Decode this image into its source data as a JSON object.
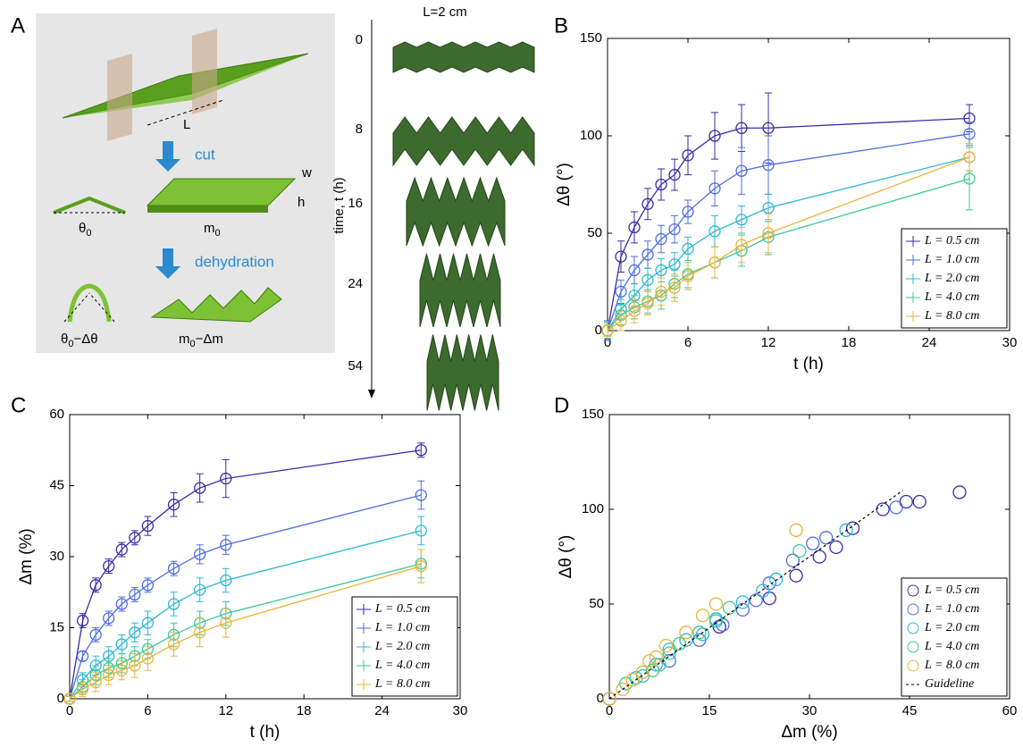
{
  "panel_a": {
    "label": "A",
    "diagram": {
      "length": "L",
      "cut": "cut",
      "width": "w",
      "height": "h",
      "angle_initial": {
        "base": "θ",
        "sub": "0",
        "rest": ""
      },
      "mass_initial": {
        "base": "m",
        "sub": "0",
        "rest": ""
      },
      "dehydration": "dehydration",
      "angle_final": {
        "base": "θ",
        "sub": "0",
        "rest": "−Δθ"
      },
      "mass_final": {
        "base": "m",
        "sub": "0",
        "rest": "−Δm"
      }
    },
    "time_strip": {
      "title": "L=2 cm",
      "axis_label": "time, t (h)",
      "ticks": [
        0,
        8,
        16,
        24,
        54
      ]
    }
  },
  "chart_data": [
    {
      "type": "line",
      "label": "B",
      "xlabel": "t (h)",
      "ylabel": "Δθ (°)",
      "x": [
        0,
        1,
        2,
        3,
        4,
        5,
        6,
        8,
        10,
        12,
        27
      ],
      "xlim": [
        0,
        30
      ],
      "xticks": [
        0,
        6,
        12,
        18,
        24,
        30
      ],
      "ylim": [
        0,
        150
      ],
      "yticks": [
        0,
        50,
        100,
        150
      ],
      "legend": "lower right",
      "series": [
        {
          "name": "L = 0.5 cm",
          "color": "#3b2aa6",
          "values": [
            0,
            38,
            53,
            65,
            75,
            80,
            90,
            100,
            104,
            104,
            109
          ],
          "errors": [
            5,
            8,
            8,
            8,
            8,
            8,
            10,
            12,
            12,
            18,
            7
          ]
        },
        {
          "name": "L = 1.0 cm",
          "color": "#4f6de0",
          "values": [
            0,
            20,
            31,
            39,
            47,
            52,
            61,
            73,
            82,
            85,
            101
          ],
          "errors": [
            5,
            6,
            7,
            7,
            7,
            7,
            6,
            9,
            12,
            15,
            6
          ]
        },
        {
          "name": "L = 2.0 cm",
          "color": "#2bb7d6",
          "values": [
            0,
            11,
            18,
            26,
            31,
            34,
            42,
            51,
            57,
            63,
            89
          ],
          "errors": [
            4,
            5,
            6,
            6,
            6,
            6,
            6,
            8,
            7,
            7,
            7
          ]
        },
        {
          "name": "L = 4.0 cm",
          "color": "#3cc79a",
          "values": [
            0,
            8,
            12,
            15,
            18,
            24,
            29,
            35,
            41,
            48,
            78
          ],
          "errors": [
            4,
            5,
            6,
            6,
            7,
            7,
            7,
            8,
            8,
            9,
            16
          ]
        },
        {
          "name": "L = 8.0 cm",
          "color": "#e8b43a",
          "values": [
            0,
            5,
            10,
            14,
            20,
            22,
            28,
            35,
            44,
            50,
            89
          ],
          "errors": [
            3,
            5,
            6,
            6,
            7,
            7,
            7,
            8,
            9,
            10,
            7
          ]
        }
      ]
    },
    {
      "type": "line",
      "label": "C",
      "xlabel": "t (h)",
      "ylabel": "Δm (%)",
      "x": [
        0,
        1,
        2,
        3,
        4,
        5,
        6,
        8,
        10,
        12,
        27
      ],
      "xlim": [
        0,
        30
      ],
      "xticks": [
        0,
        6,
        12,
        18,
        24,
        30
      ],
      "ylim": [
        0,
        60
      ],
      "yticks": [
        0,
        15,
        30,
        45,
        60
      ],
      "legend": "lower right",
      "series": [
        {
          "name": "L = 0.5 cm",
          "color": "#3b2aa6",
          "values": [
            0,
            16.5,
            24,
            28,
            31.5,
            34,
            36.5,
            41,
            44.5,
            46.5,
            52.5
          ],
          "errors": [
            0.5,
            1.5,
            1.5,
            1.5,
            1.5,
            1.5,
            2,
            2.5,
            3,
            4,
            1.5
          ]
        },
        {
          "name": "L = 1.0 cm",
          "color": "#4f6de0",
          "values": [
            0,
            9,
            13.5,
            17,
            20,
            22,
            24,
            27.5,
            30.5,
            32.5,
            43
          ],
          "errors": [
            0.5,
            1,
            1.5,
            1.5,
            1.5,
            1.5,
            1.5,
            1.5,
            2,
            2,
            3
          ]
        },
        {
          "name": "L = 2.0 cm",
          "color": "#2bb7d6",
          "values": [
            0,
            4,
            7,
            9,
            11.5,
            14,
            16,
            20,
            23,
            25,
            35.5
          ],
          "errors": [
            0.5,
            1.5,
            2,
            2,
            2,
            2,
            2.5,
            2.5,
            2.5,
            2.5,
            3
          ]
        },
        {
          "name": "L = 4.0 cm",
          "color": "#3cc79a",
          "values": [
            0,
            2.5,
            5,
            6.5,
            7.5,
            9,
            10.5,
            13.5,
            16,
            18,
            28.5
          ],
          "errors": [
            0.5,
            1.5,
            2,
            2,
            2,
            2,
            2,
            2.5,
            2.5,
            2.5,
            3
          ]
        },
        {
          "name": "L = 8.0 cm",
          "color": "#e8b43a",
          "values": [
            0,
            2,
            3.5,
            5,
            6,
            7,
            8.5,
            11.5,
            14,
            16,
            28
          ],
          "errors": [
            0.5,
            1.5,
            2,
            2,
            2,
            2.5,
            2.5,
            2.5,
            3,
            3,
            3.5
          ]
        }
      ]
    },
    {
      "type": "scatter",
      "label": "D",
      "xlabel": "Δm (%)",
      "ylabel": "Δθ (°)",
      "xlim": [
        0,
        60
      ],
      "xticks": [
        0,
        15,
        30,
        45,
        60
      ],
      "ylim": [
        0,
        150
      ],
      "yticks": [
        0,
        50,
        100,
        150
      ],
      "legend": "lower right",
      "series": [
        {
          "name": "L = 0.5 cm",
          "color": "#3b2aa6",
          "x": [
            0,
            16.5,
            24,
            28,
            31.5,
            34,
            36.5,
            41,
            44.5,
            46.5,
            52.5
          ],
          "values": [
            0,
            38,
            53,
            65,
            75,
            80,
            90,
            100,
            104,
            104,
            109
          ]
        },
        {
          "name": "L = 1.0 cm",
          "color": "#4f6de0",
          "x": [
            0,
            9,
            13.5,
            17,
            20,
            22,
            24,
            27.5,
            30.5,
            32.5,
            43
          ],
          "values": [
            0,
            20,
            31,
            39,
            47,
            52,
            61,
            73,
            82,
            85,
            101
          ]
        },
        {
          "name": "L = 2.0 cm",
          "color": "#2bb7d6",
          "x": [
            0,
            4,
            7,
            9,
            11.5,
            14,
            16,
            20,
            23,
            25,
            35.5
          ],
          "values": [
            0,
            11,
            18,
            26,
            31,
            34,
            42,
            51,
            57,
            63,
            89
          ]
        },
        {
          "name": "L = 4.0 cm",
          "color": "#3cc79a",
          "x": [
            0,
            2.5,
            5,
            6.5,
            7.5,
            9,
            10.5,
            13.5,
            16,
            18,
            28.5
          ],
          "values": [
            0,
            8,
            12,
            15,
            18,
            24,
            29,
            35,
            41,
            48,
            78
          ]
        },
        {
          "name": "L = 8.0 cm",
          "color": "#e8b43a",
          "x": [
            0,
            2,
            3.5,
            5,
            6,
            7,
            8.5,
            11.5,
            14,
            16,
            28
          ],
          "values": [
            0,
            5,
            10,
            14,
            20,
            22,
            28,
            35,
            44,
            50,
            89
          ]
        },
        {
          "name": "Guideline",
          "color": "#000000",
          "dashed": true,
          "x": [
            0,
            44
          ],
          "values": [
            0,
            110
          ]
        }
      ]
    }
  ]
}
